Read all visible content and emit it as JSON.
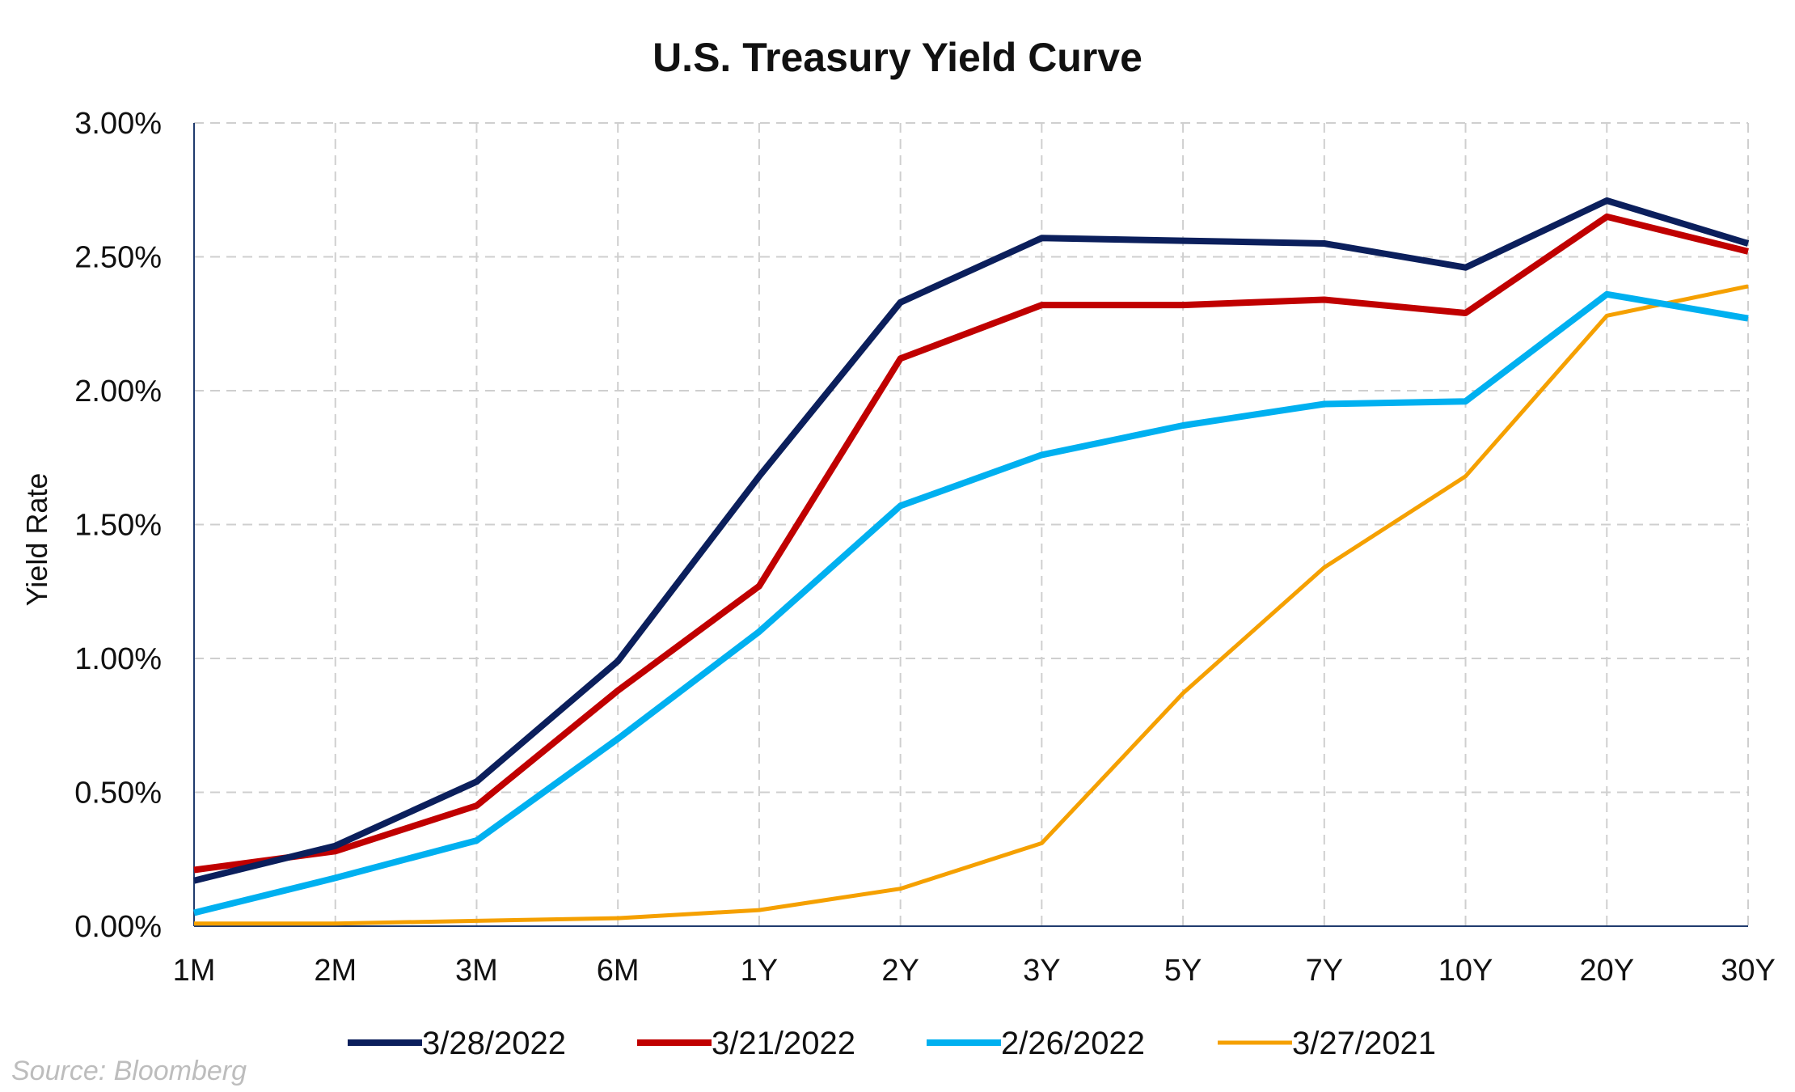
{
  "chart_data": {
    "type": "line",
    "title": "U.S. Treasury Yield Curve",
    "xlabel": "",
    "ylabel": "Yield Rate",
    "categories": [
      "1M",
      "2M",
      "3M",
      "6M",
      "1Y",
      "2Y",
      "3Y",
      "5Y",
      "7Y",
      "10Y",
      "20Y",
      "30Y"
    ],
    "y_ticks": [
      "0.00%",
      "0.50%",
      "1.00%",
      "1.50%",
      "2.00%",
      "2.50%",
      "3.00%"
    ],
    "ylim": [
      0,
      3.0
    ],
    "grid": true,
    "legend_position": "bottom",
    "series": [
      {
        "name": "3/28/2022",
        "color": "#0b1f5c",
        "values": [
          0.17,
          0.3,
          0.54,
          0.99,
          1.68,
          2.33,
          2.57,
          2.56,
          2.55,
          2.46,
          2.71,
          2.55
        ]
      },
      {
        "name": "3/21/2022",
        "color": "#c00000",
        "values": [
          0.21,
          0.28,
          0.45,
          0.88,
          1.27,
          2.12,
          2.32,
          2.32,
          2.34,
          2.29,
          2.65,
          2.52
        ]
      },
      {
        "name": "2/26/2022",
        "color": "#00b0f0",
        "values": [
          0.05,
          0.18,
          0.32,
          0.7,
          1.1,
          1.57,
          1.76,
          1.87,
          1.95,
          1.96,
          2.36,
          2.27
        ]
      },
      {
        "name": "3/27/2021",
        "color": "#f5a000",
        "values": [
          0.01,
          0.01,
          0.02,
          0.03,
          0.06,
          0.14,
          0.31,
          0.87,
          1.34,
          1.68,
          2.28,
          2.39
        ]
      }
    ],
    "source": "Source: Bloomberg"
  }
}
